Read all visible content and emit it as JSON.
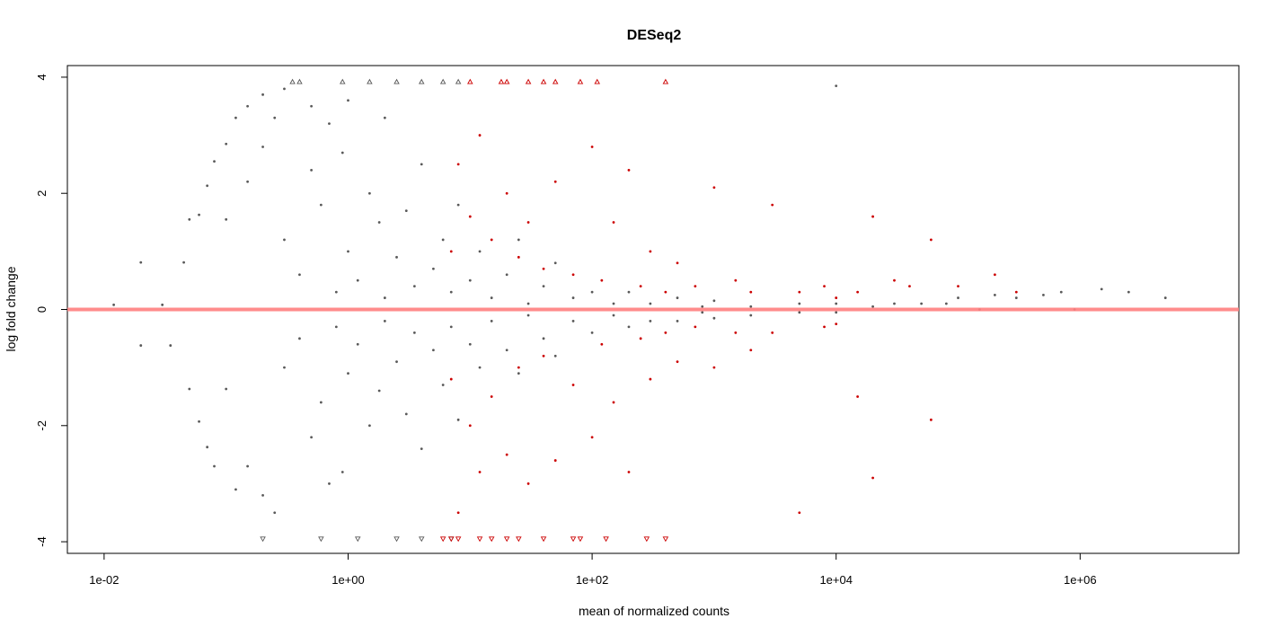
{
  "chart_data": {
    "type": "scatter",
    "title": "DESeq2",
    "xlabel": "mean of normalized counts",
    "ylabel": "log fold change",
    "x_scale": "log10",
    "xlim": [
      0.005,
      20000000
    ],
    "ylim": [
      -4.2,
      4.2
    ],
    "x_ticks": [
      {
        "value": 0.01,
        "label": "1e-02"
      },
      {
        "value": 1,
        "label": "1e+00"
      },
      {
        "value": 100,
        "label": "1e+02"
      },
      {
        "value": 10000,
        "label": "1e+04"
      },
      {
        "value": 1000000,
        "label": "1e+06"
      }
    ],
    "y_ticks": [
      {
        "value": -4,
        "label": "-4"
      },
      {
        "value": -2,
        "label": "-2"
      },
      {
        "value": 0,
        "label": "0"
      },
      {
        "value": 2,
        "label": "2"
      },
      {
        "value": 4,
        "label": "4"
      }
    ],
    "reference_line": {
      "y": 0,
      "color": "#ff8080"
    },
    "grid": false,
    "series": [
      {
        "color": "#595959",
        "points": [
          [
            0.012,
            0.08
          ],
          [
            0.02,
            0.81
          ],
          [
            0.02,
            -0.62
          ],
          [
            0.03,
            0.08
          ],
          [
            0.035,
            -0.62
          ],
          [
            0.045,
            0.81
          ],
          [
            0.05,
            1.55
          ],
          [
            0.05,
            -1.37
          ],
          [
            0.06,
            1.63
          ],
          [
            0.06,
            -1.93
          ],
          [
            0.07,
            2.13
          ],
          [
            0.07,
            -2.37
          ],
          [
            0.08,
            2.55
          ],
          [
            0.08,
            -2.7
          ],
          [
            0.1,
            2.85
          ],
          [
            0.1,
            1.55
          ],
          [
            0.1,
            -1.37
          ],
          [
            0.12,
            3.3
          ],
          [
            0.12,
            -3.1
          ],
          [
            0.15,
            3.5
          ],
          [
            0.15,
            2.2
          ],
          [
            0.15,
            -2.7
          ],
          [
            0.2,
            3.7
          ],
          [
            0.2,
            2.8
          ],
          [
            0.2,
            -3.2
          ],
          [
            0.25,
            3.3
          ],
          [
            0.25,
            -3.5
          ],
          [
            0.3,
            3.8
          ],
          [
            0.3,
            1.2
          ],
          [
            0.3,
            -1.0
          ],
          [
            0.4,
            3.9
          ],
          [
            0.4,
            0.6
          ],
          [
            0.4,
            -0.5
          ],
          [
            0.5,
            3.5
          ],
          [
            0.5,
            2.4
          ],
          [
            0.5,
            -2.2
          ],
          [
            0.6,
            1.8
          ],
          [
            0.6,
            -1.6
          ],
          [
            0.7,
            3.2
          ],
          [
            0.7,
            -3.0
          ],
          [
            0.8,
            0.3
          ],
          [
            0.8,
            -0.3
          ],
          [
            0.9,
            2.7
          ],
          [
            0.9,
            -2.8
          ],
          [
            1,
            3.6
          ],
          [
            1,
            1.0
          ],
          [
            1,
            -1.1
          ],
          [
            1.2,
            0.5
          ],
          [
            1.2,
            -0.6
          ],
          [
            1.5,
            2.0
          ],
          [
            1.5,
            -2.0
          ],
          [
            1.8,
            1.5
          ],
          [
            1.8,
            -1.4
          ],
          [
            2,
            3.3
          ],
          [
            2,
            0.2
          ],
          [
            2,
            -0.2
          ],
          [
            2.5,
            0.9
          ],
          [
            2.5,
            -0.9
          ],
          [
            3,
            1.7
          ],
          [
            3,
            -1.8
          ],
          [
            3.5,
            0.4
          ],
          [
            3.5,
            -0.4
          ],
          [
            4,
            2.5
          ],
          [
            4,
            -2.4
          ],
          [
            5,
            0.7
          ],
          [
            5,
            -0.7
          ],
          [
            6,
            1.2
          ],
          [
            6,
            -1.3
          ],
          [
            7,
            0.3
          ],
          [
            7,
            -0.3
          ],
          [
            8,
            1.8
          ],
          [
            8,
            -1.9
          ],
          [
            10,
            0.5
          ],
          [
            10,
            -0.6
          ],
          [
            12,
            1.0
          ],
          [
            12,
            -1.0
          ],
          [
            15,
            0.2
          ],
          [
            15,
            -0.2
          ],
          [
            20,
            0.6
          ],
          [
            20,
            -0.7
          ],
          [
            25,
            1.2
          ],
          [
            25,
            -1.1
          ],
          [
            30,
            0.1
          ],
          [
            30,
            -0.1
          ],
          [
            40,
            0.4
          ],
          [
            40,
            -0.5
          ],
          [
            50,
            0.8
          ],
          [
            50,
            -0.8
          ],
          [
            70,
            0.2
          ],
          [
            70,
            -0.2
          ],
          [
            100,
            0.3
          ],
          [
            100,
            -0.4
          ],
          [
            150,
            0.1
          ],
          [
            150,
            -0.1
          ],
          [
            200,
            0.3
          ],
          [
            200,
            -0.3
          ],
          [
            300,
            0.1
          ],
          [
            300,
            -0.2
          ],
          [
            500,
            0.2
          ],
          [
            500,
            -0.2
          ],
          [
            800,
            0.05
          ],
          [
            800,
            -0.05
          ],
          [
            1000,
            0.15
          ],
          [
            1000,
            -0.15
          ],
          [
            2000,
            0.05
          ],
          [
            2000,
            -0.1
          ],
          [
            5000,
            0.1
          ],
          [
            5000,
            -0.05
          ],
          [
            10000,
            0.1
          ],
          [
            10000,
            -0.05
          ],
          [
            20000,
            0.05
          ],
          [
            30000,
            0.1
          ],
          [
            50000,
            0.1
          ],
          [
            80000,
            0.1
          ],
          [
            100000,
            0.2
          ],
          [
            150000,
            0.0
          ],
          [
            200000,
            0.25
          ],
          [
            300000,
            0.2
          ],
          [
            500000,
            0.25
          ],
          [
            700000,
            0.3
          ],
          [
            900000,
            0.0
          ],
          [
            1500000,
            0.35
          ],
          [
            2500000,
            0.3
          ],
          [
            5000000,
            0.2
          ],
          [
            0.35,
            3.9
          ],
          [
            0.9,
            3.9
          ],
          [
            1.5,
            3.9
          ],
          [
            2.5,
            3.9
          ],
          [
            4,
            3.9
          ],
          [
            6,
            3.9
          ],
          [
            8,
            3.9
          ],
          [
            0.2,
            -3.95
          ],
          [
            0.6,
            -3.95
          ],
          [
            1.2,
            -3.95
          ],
          [
            2.5,
            -3.95
          ],
          [
            4,
            -3.95
          ],
          [
            7,
            -3.95
          ],
          [
            10000,
            3.85
          ]
        ]
      },
      {
        "color": "#cc0000",
        "points": [
          [
            7,
            1.0
          ],
          [
            7,
            -1.2
          ],
          [
            8,
            2.5
          ],
          [
            8,
            -3.5
          ],
          [
            10,
            1.6
          ],
          [
            10,
            -2.0
          ],
          [
            12,
            3.0
          ],
          [
            12,
            -2.8
          ],
          [
            15,
            1.2
          ],
          [
            15,
            -1.5
          ],
          [
            20,
            2.0
          ],
          [
            20,
            -2.5
          ],
          [
            25,
            0.9
          ],
          [
            25,
            -1.0
          ],
          [
            30,
            1.5
          ],
          [
            30,
            -3.0
          ],
          [
            40,
            0.7
          ],
          [
            40,
            -0.8
          ],
          [
            50,
            2.2
          ],
          [
            50,
            -2.6
          ],
          [
            70,
            0.6
          ],
          [
            70,
            -1.3
          ],
          [
            100,
            2.8
          ],
          [
            100,
            -2.2
          ],
          [
            120,
            0.5
          ],
          [
            120,
            -0.6
          ],
          [
            150,
            1.5
          ],
          [
            150,
            -1.6
          ],
          [
            200,
            2.4
          ],
          [
            200,
            -2.8
          ],
          [
            250,
            0.4
          ],
          [
            250,
            -0.5
          ],
          [
            300,
            1.0
          ],
          [
            300,
            -1.2
          ],
          [
            400,
            0.3
          ],
          [
            400,
            -0.4
          ],
          [
            500,
            0.8
          ],
          [
            500,
            -0.9
          ],
          [
            700,
            0.4
          ],
          [
            700,
            -0.3
          ],
          [
            1000,
            2.1
          ],
          [
            1000,
            -1.0
          ],
          [
            1500,
            0.5
          ],
          [
            1500,
            -0.4
          ],
          [
            2000,
            0.3
          ],
          [
            2000,
            -0.7
          ],
          [
            3000,
            1.8
          ],
          [
            3000,
            -0.4
          ],
          [
            5000,
            0.3
          ],
          [
            5000,
            -3.5
          ],
          [
            8000,
            0.4
          ],
          [
            8000,
            -0.3
          ],
          [
            10000,
            0.2
          ],
          [
            10000,
            -0.25
          ],
          [
            15000,
            0.3
          ],
          [
            15000,
            -1.5
          ],
          [
            20000,
            1.6
          ],
          [
            20000,
            -2.9
          ],
          [
            30000,
            0.5
          ],
          [
            40000,
            0.4
          ],
          [
            60000,
            1.2
          ],
          [
            60000,
            -1.9
          ],
          [
            100000,
            0.4
          ],
          [
            200000,
            0.6
          ],
          [
            300000,
            0.3
          ],
          [
            10,
            3.9
          ],
          [
            18,
            3.9
          ],
          [
            20,
            3.9
          ],
          [
            30,
            3.9
          ],
          [
            40,
            3.9
          ],
          [
            50,
            3.9
          ],
          [
            80,
            3.9
          ],
          [
            110,
            3.9
          ],
          [
            400,
            3.9
          ],
          [
            6,
            -3.95
          ],
          [
            7,
            -3.95
          ],
          [
            8,
            -3.95
          ],
          [
            12,
            -3.95
          ],
          [
            15,
            -3.95
          ],
          [
            20,
            -3.95
          ],
          [
            25,
            -3.95
          ],
          [
            40,
            -3.95
          ],
          [
            70,
            -3.95
          ],
          [
            80,
            -3.95
          ],
          [
            130,
            -3.95
          ],
          [
            280,
            -3.95
          ],
          [
            400,
            -3.95
          ]
        ]
      }
    ]
  }
}
